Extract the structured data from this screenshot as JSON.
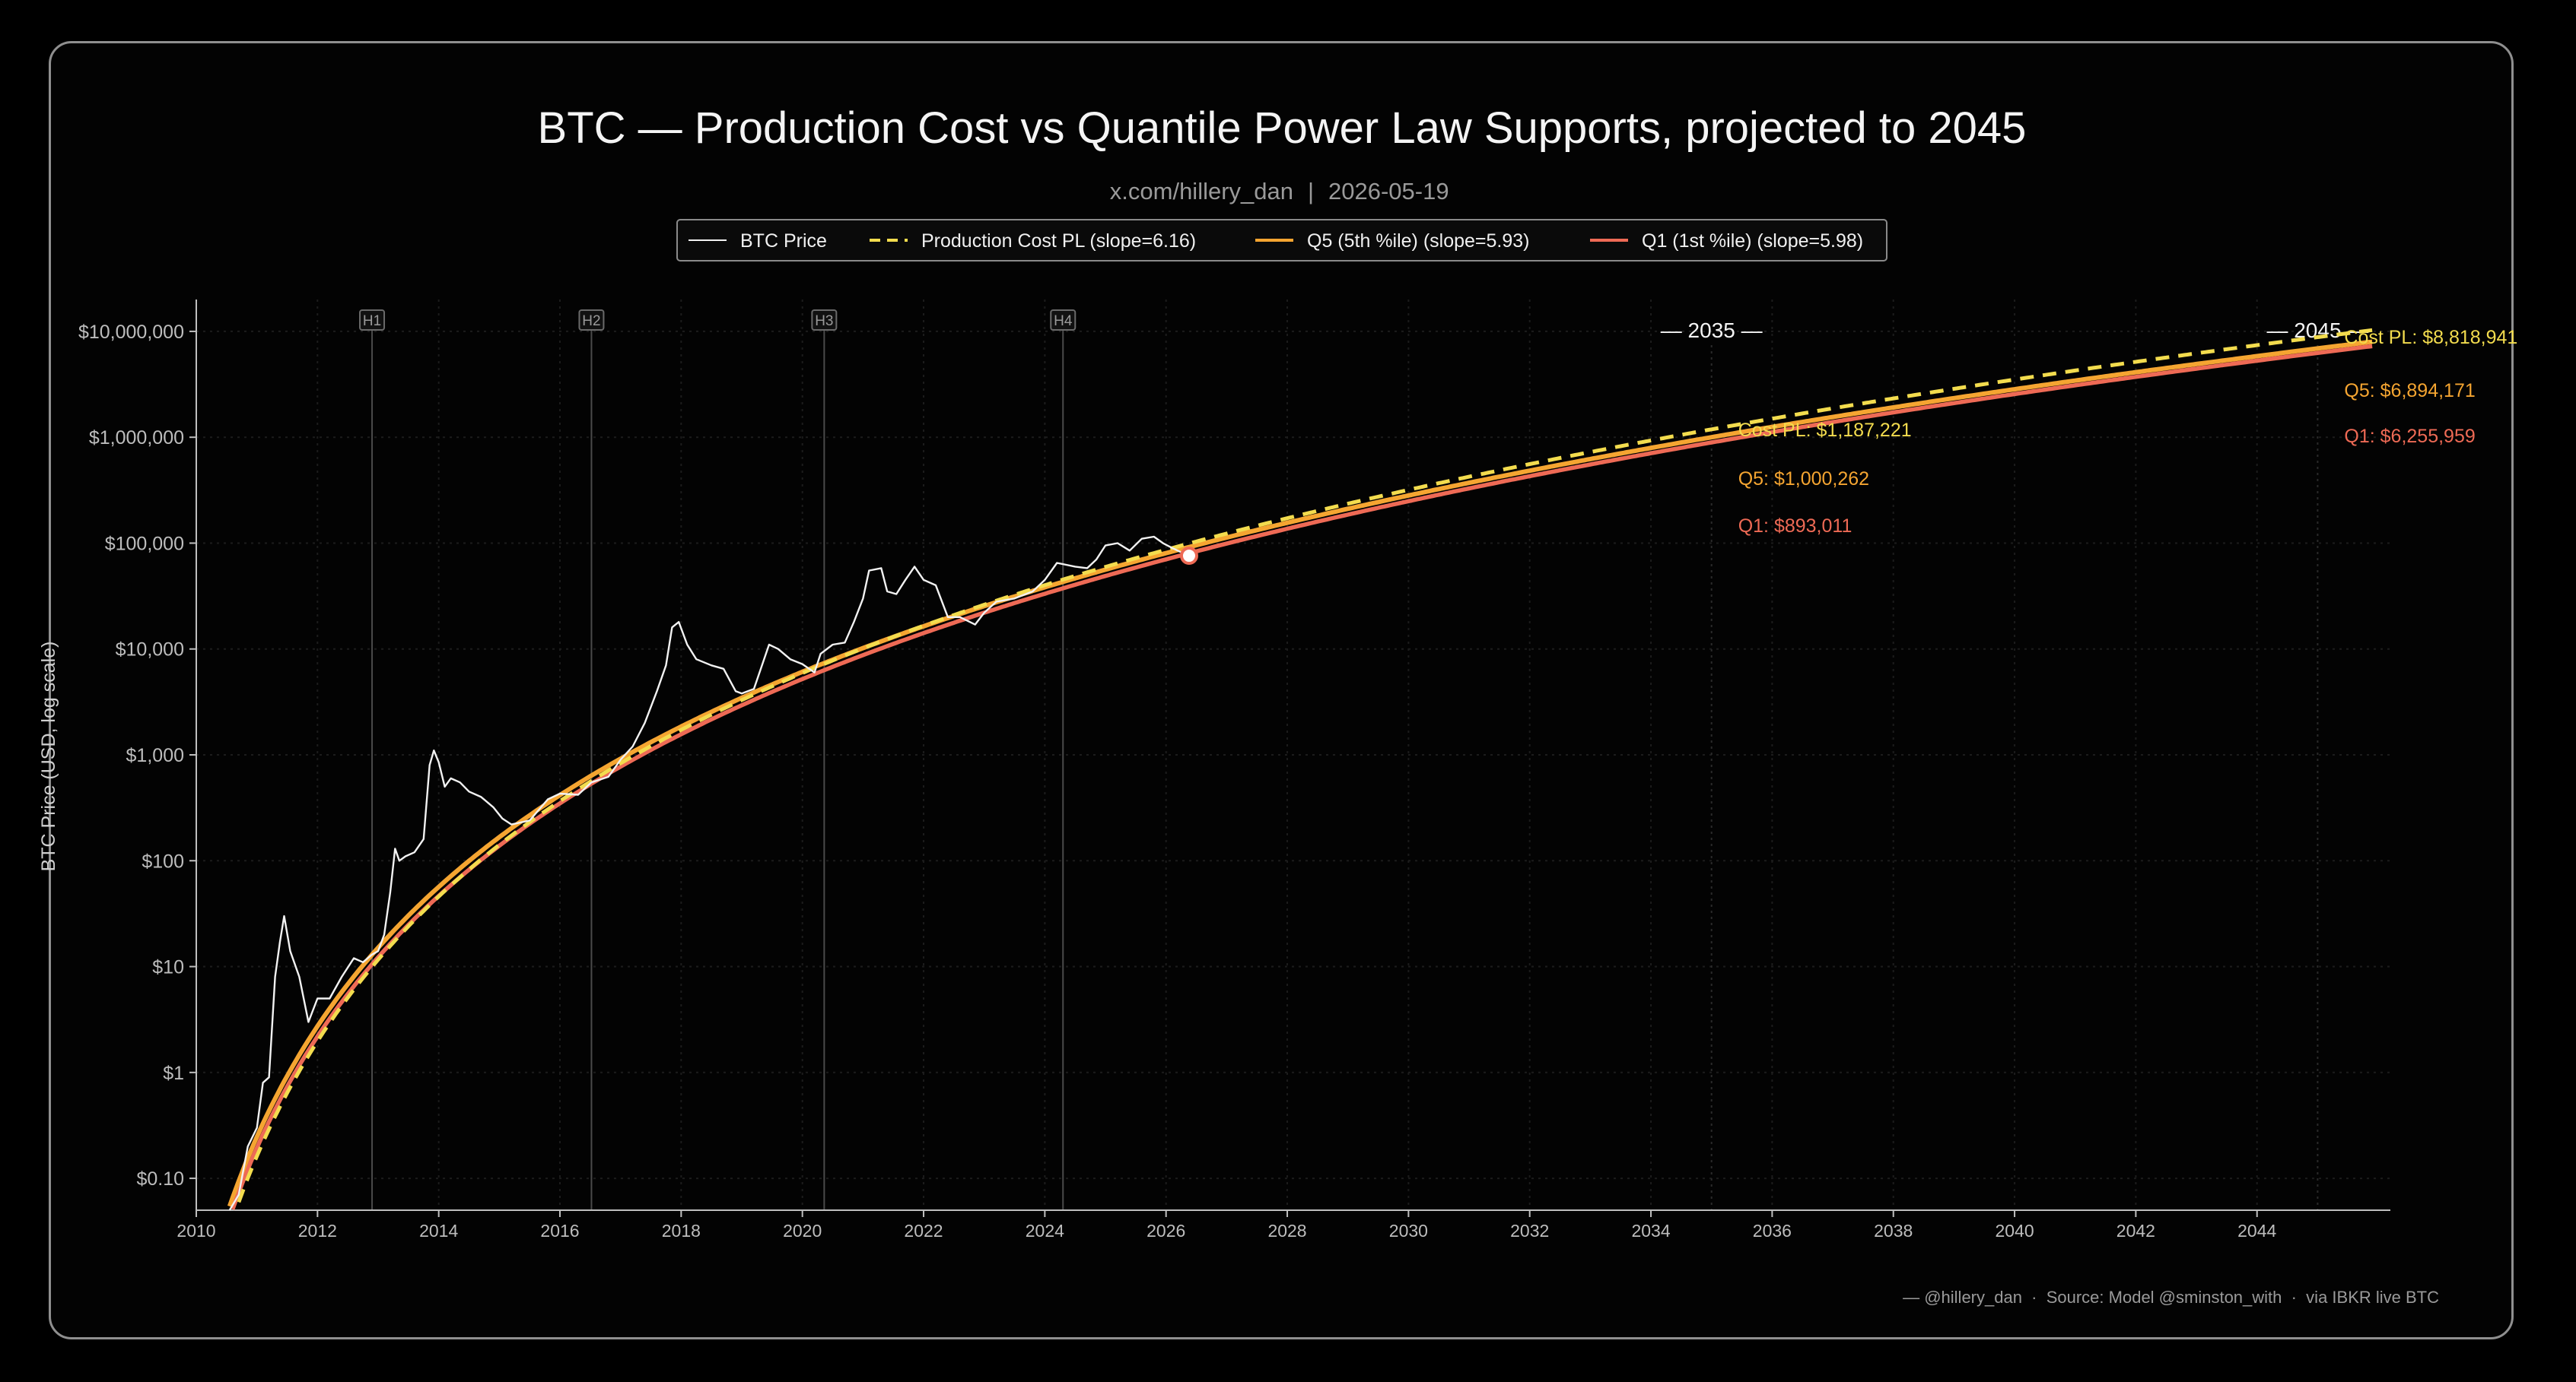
{
  "header": {
    "title": "BTC — Production Cost vs Quantile Power Law Supports, projected to 2045",
    "subtitle_handle": "x.com/hillery_dan",
    "subtitle_sep": "|",
    "subtitle_date": "2026-05-19"
  },
  "footer": {
    "credit": "— @hillery_dan  ·  Source: Model @sminston_with  ·  via IBKR live BTC"
  },
  "colors": {
    "background": "#000000",
    "price": "#f2f2f2",
    "cost": "#f3dc4e",
    "q5": "#f5a531",
    "q1": "#ee6a55",
    "axis": "#bfbfbf",
    "grid": "#1c1c1c",
    "halving": "#4a4a4a"
  },
  "chart_data": {
    "type": "line",
    "title": "BTC — Production Cost vs Quantile Power Law Supports, projected to 2045",
    "xlabel": "",
    "ylabel": "BTC Price (USD, log scale)",
    "yscale": "log",
    "xlim": [
      2010,
      2046.2
    ],
    "ylim": [
      0.05,
      20000000
    ],
    "grid": true,
    "legend_position": "top-center",
    "x_ticks": [
      "2010",
      "2012",
      "2014",
      "2016",
      "2018",
      "2020",
      "2022",
      "2024",
      "2026",
      "2028",
      "2030",
      "2032",
      "2034",
      "2036",
      "2038",
      "2040",
      "2042",
      "2044"
    ],
    "y_ticks": [
      {
        "value": 0.1,
        "label": "$0.10"
      },
      {
        "value": 1,
        "label": "$1"
      },
      {
        "value": 10,
        "label": "$10"
      },
      {
        "value": 100,
        "label": "$100"
      },
      {
        "value": 1000,
        "label": "$1,000"
      },
      {
        "value": 10000,
        "label": "$10,000"
      },
      {
        "value": 100000,
        "label": "$100,000"
      },
      {
        "value": 1000000,
        "label": "$1,000,000"
      },
      {
        "value": 10000000,
        "label": "$10,000,000"
      }
    ],
    "legend": [
      {
        "label": "BTC Price",
        "style": "solid",
        "color": "#f2f2f2"
      },
      {
        "label": "Production Cost PL (slope=6.16)",
        "style": "dashed",
        "color": "#f3dc4e"
      },
      {
        "label": "Q5 (5th %ile) (slope=5.93)",
        "style": "solid",
        "color": "#f5a531"
      },
      {
        "label": "Q1 (1st %ile) (slope=5.98)",
        "style": "solid",
        "color": "#ee6a55"
      }
    ],
    "halvings": [
      {
        "label": "H1",
        "x": 2012.9
      },
      {
        "label": "H2",
        "x": 2016.52
      },
      {
        "label": "H3",
        "x": 2020.36
      },
      {
        "label": "H4",
        "x": 2024.3
      }
    ],
    "milestones": [
      {
        "label": "— 2035 —",
        "x": 2035.0
      },
      {
        "label": "— 2045 —",
        "x": 2045.0
      }
    ],
    "series": [
      {
        "name": "BTC Price",
        "x": [
          2010.55,
          2010.7,
          2010.85,
          2011.0,
          2011.1,
          2011.2,
          2011.3,
          2011.38,
          2011.45,
          2011.55,
          2011.7,
          2011.85,
          2012.0,
          2012.2,
          2012.4,
          2012.6,
          2012.75,
          2012.9,
          2013.0,
          2013.1,
          2013.2,
          2013.28,
          2013.35,
          2013.45,
          2013.6,
          2013.75,
          2013.85,
          2013.92,
          2014.0,
          2014.1,
          2014.2,
          2014.35,
          2014.5,
          2014.7,
          2014.9,
          2015.05,
          2015.2,
          2015.5,
          2015.8,
          2016.0,
          2016.3,
          2016.52,
          2016.8,
          2017.0,
          2017.2,
          2017.4,
          2017.6,
          2017.75,
          2017.85,
          2017.96,
          2018.1,
          2018.25,
          2018.5,
          2018.7,
          2018.9,
          2019.0,
          2019.2,
          2019.45,
          2019.6,
          2019.8,
          2020.0,
          2020.2,
          2020.3,
          2020.5,
          2020.7,
          2020.85,
          2021.0,
          2021.1,
          2021.3,
          2021.4,
          2021.55,
          2021.7,
          2021.85,
          2022.0,
          2022.2,
          2022.4,
          2022.6,
          2022.85,
          2023.0,
          2023.2,
          2023.5,
          2023.8,
          2024.0,
          2024.2,
          2024.5,
          2024.7,
          2024.85,
          2025.0,
          2025.2,
          2025.4,
          2025.6,
          2025.8,
          2025.95,
          2026.1,
          2026.25,
          2026.38
        ],
        "values": [
          0.05,
          0.07,
          0.2,
          0.3,
          0.8,
          0.9,
          8,
          17,
          30,
          14,
          8,
          3,
          5,
          5,
          8,
          12,
          11,
          13,
          14,
          20,
          50,
          130,
          100,
          110,
          120,
          160,
          800,
          1100,
          850,
          500,
          600,
          550,
          450,
          400,
          320,
          250,
          220,
          240,
          380,
          430,
          420,
          550,
          620,
          900,
          1200,
          2000,
          4000,
          7000,
          16000,
          18000,
          11000,
          8000,
          7000,
          6500,
          4000,
          3800,
          4200,
          11000,
          10000,
          8000,
          7200,
          6000,
          9000,
          11000,
          11500,
          18000,
          30000,
          55000,
          58000,
          35000,
          33000,
          45000,
          60000,
          45000,
          40000,
          20000,
          20000,
          17000,
          22000,
          28000,
          30000,
          35000,
          45000,
          65000,
          60000,
          58000,
          70000,
          95000,
          100000,
          85000,
          110000,
          115000,
          100000,
          90000,
          82000,
          76000
        ]
      },
      {
        "name": "Production Cost PL (slope=6.16)",
        "value_2035": 1187221,
        "value_2045": 8818941
      },
      {
        "name": "Q5 (5th %ile) (slope=5.93)",
        "value_2035": 1000262,
        "value_2045": 6894171
      },
      {
        "name": "Q1 (1st %ile) (slope=5.98)",
        "value_2035": 893011,
        "value_2045": 6255959
      }
    ],
    "annotations": [
      {
        "text": "Cost PL: $1,187,221",
        "x": 2035,
        "series": "cost"
      },
      {
        "text": "Q5: $1,000,262",
        "x": 2035,
        "series": "q5"
      },
      {
        "text": "Q1: $893,011",
        "x": 2035,
        "series": "q1"
      },
      {
        "text": "Cost PL: $8,818,941",
        "x": 2045,
        "series": "cost"
      },
      {
        "text": "Q5: $6,894,171",
        "x": 2045,
        "series": "q5"
      },
      {
        "text": "Q1: $6,255,959",
        "x": 2045,
        "series": "q1"
      }
    ],
    "current_point": {
      "x": 2026.38,
      "value": 76000
    }
  }
}
